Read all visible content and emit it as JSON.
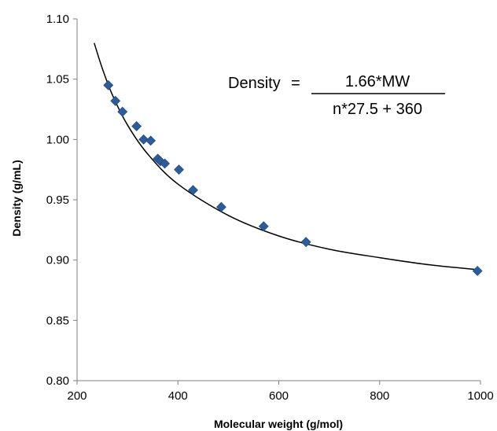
{
  "chart_data": {
    "type": "scatter",
    "xlabel": "Molecular weight (g/mol)",
    "ylabel": "Density (g/mL)",
    "xlim": [
      200,
      1000
    ],
    "ylim": [
      0.8,
      1.1
    ],
    "x_ticks": [
      "200",
      "400",
      "600",
      "800",
      "1000"
    ],
    "y_ticks": [
      "0.80",
      "0.85",
      "0.90",
      "0.95",
      "1.00",
      "1.05",
      "1.10"
    ],
    "grid": false,
    "marker_color": "#2E5C9A",
    "line_color": "#000000",
    "points": [
      {
        "x": 262,
        "y": 1.045
      },
      {
        "x": 276,
        "y": 1.032
      },
      {
        "x": 290,
        "y": 1.023
      },
      {
        "x": 318,
        "y": 1.011
      },
      {
        "x": 332,
        "y": 1.0
      },
      {
        "x": 346,
        "y": 0.999
      },
      {
        "x": 360,
        "y": 0.984
      },
      {
        "x": 365,
        "y": 0.982
      },
      {
        "x": 374,
        "y": 0.98
      },
      {
        "x": 402,
        "y": 0.975
      },
      {
        "x": 430,
        "y": 0.958
      },
      {
        "x": 486,
        "y": 0.944
      },
      {
        "x": 570,
        "y": 0.928
      },
      {
        "x": 654,
        "y": 0.915
      },
      {
        "x": 994,
        "y": 0.891
      }
    ],
    "fit_curve": {
      "x": [
        234,
        250,
        270,
        300,
        340,
        400,
        500,
        600,
        700,
        800,
        900,
        996
      ],
      "y": [
        1.08,
        1.059,
        1.037,
        1.012,
        0.988,
        0.963,
        0.937,
        0.92,
        0.909,
        0.902,
        0.896,
        0.892
      ]
    },
    "annotation": {
      "lhs": "Density",
      "equals": "=",
      "numerator": "1.66*MW",
      "denominator": "n*27.5 + 360"
    }
  }
}
